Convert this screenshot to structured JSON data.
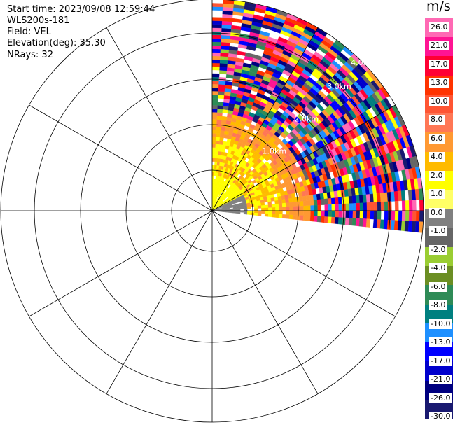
{
  "header": {
    "start_time": "Start time: 2023/09/08 12:59:44",
    "instrument": "WLS200s-181",
    "field": "Field: VEL",
    "elevation": "Elevation(deg): 35.30",
    "nrays": "NRays: 32"
  },
  "chart_data": {
    "type": "heatmap",
    "projection": "polar-ppi",
    "field": "VEL",
    "units": "m/s",
    "sector_deg": [
      0,
      95
    ],
    "range_rings_km": [
      1.0,
      2.0,
      3.0,
      4.0
    ],
    "ring_labels": [
      "1.0km",
      "2.0km",
      "3.0km",
      "4.0km"
    ],
    "max_range_km": 5.2,
    "radial_spokes_deg": [
      0,
      30,
      60,
      90,
      120,
      150,
      180,
      210,
      240,
      270,
      300,
      330
    ],
    "colorbar": {
      "unit_label": "m/s",
      "ticks": [
        "26.0",
        "21.0",
        "17.0",
        "13.0",
        "10.0",
        "8.0",
        "6.0",
        "4.0",
        "2.0",
        "1.0",
        "0.0",
        "-1.0",
        "-2.0",
        "-4.0",
        "-6.0",
        "-8.0",
        "-10.0",
        "-13.0",
        "-17.0",
        "-21.0",
        "-26.0",
        "-30.0"
      ],
      "colors": [
        "#ff69b4",
        "#ff1493",
        "#ff0033",
        "#ff3300",
        "#ff5533",
        "#ff7755",
        "#ff9933",
        "#ffbb00",
        "#ffff00",
        "#ffff66",
        "#808080",
        "#666666",
        "#9acd32",
        "#6b8e23",
        "#2e8b57",
        "#008080",
        "#1e90ff",
        "#0000ff",
        "#0000cd",
        "#000080",
        "#191970"
      ]
    }
  }
}
